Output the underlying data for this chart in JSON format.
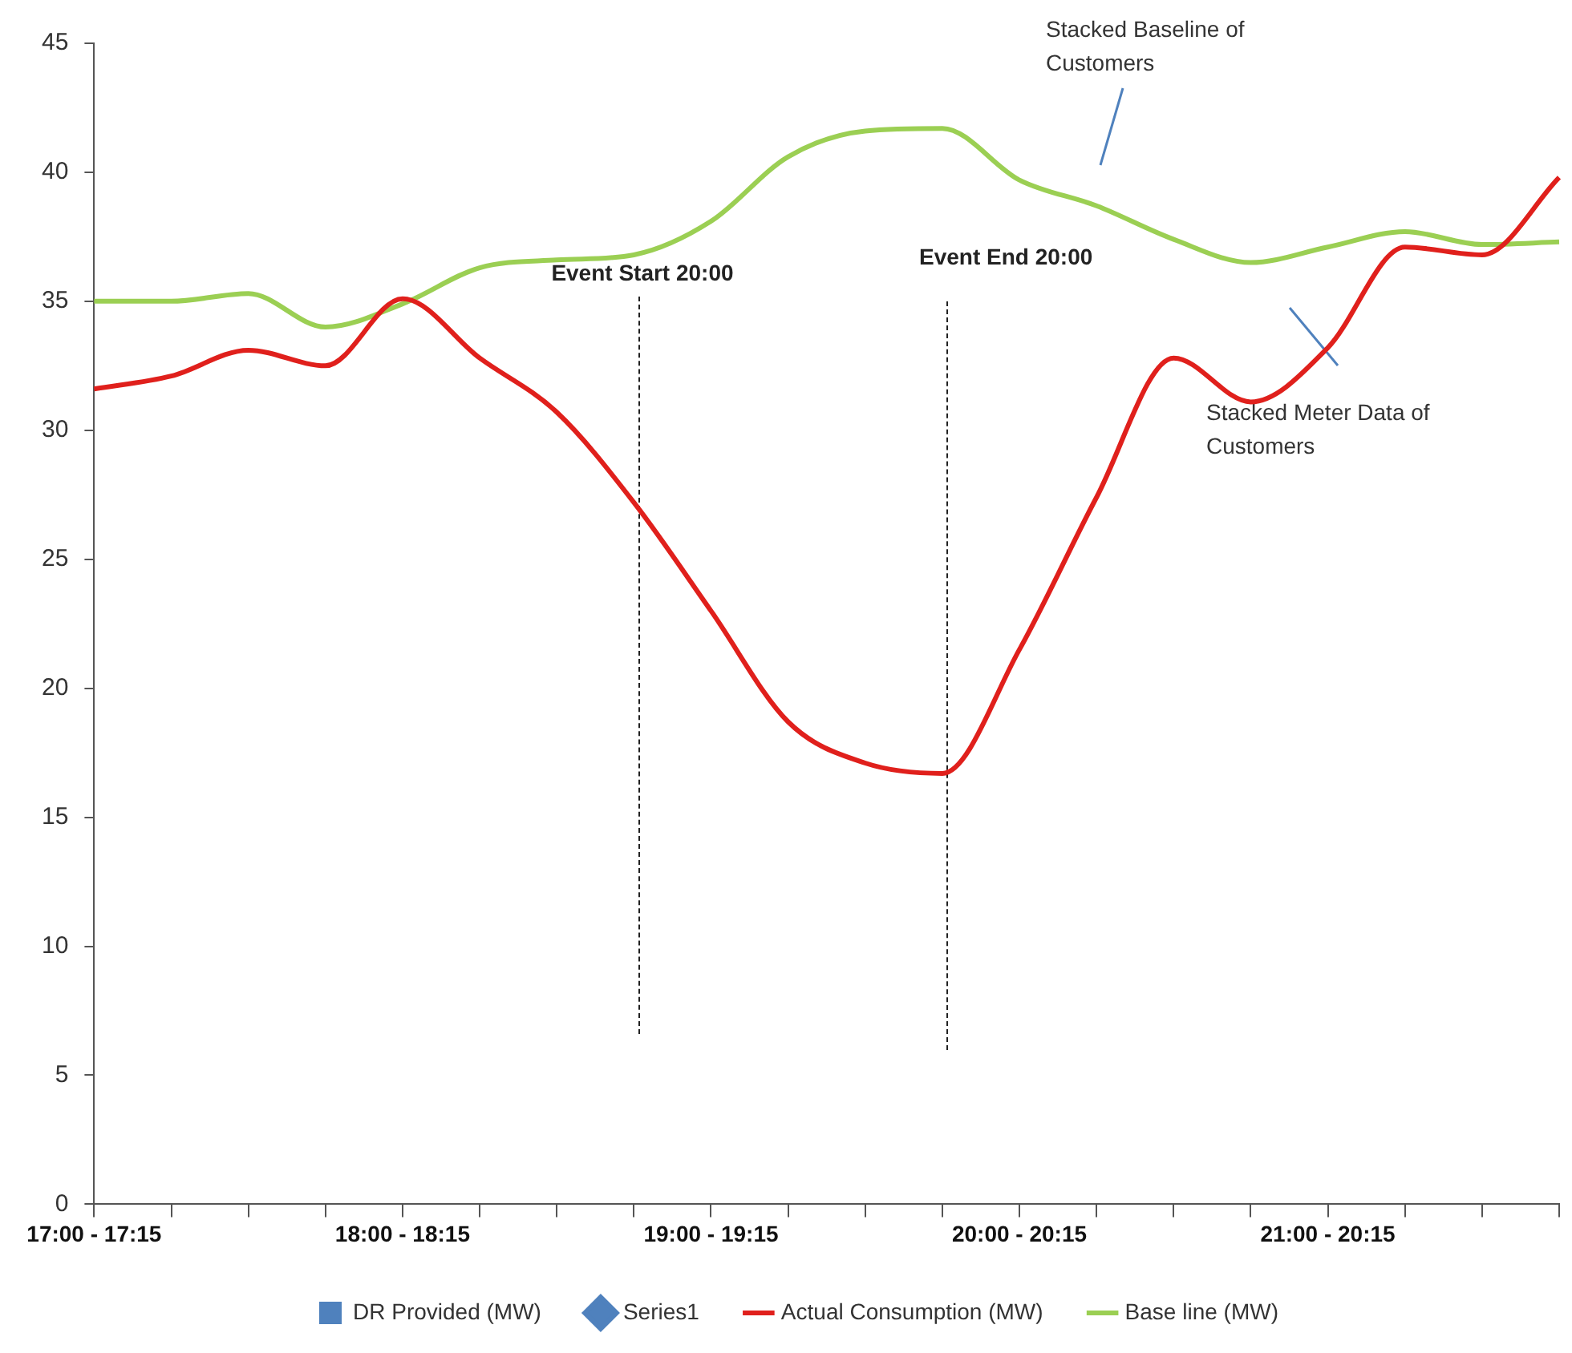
{
  "chart_data": {
    "type": "line",
    "categories": [
      "17:00 - 17:15",
      null,
      null,
      null,
      "18:00 - 18:15",
      null,
      null,
      null,
      "19:00 - 19:15",
      null,
      null,
      null,
      "20:00 - 20:15",
      null,
      null,
      null,
      "21:00 - 20:15",
      null,
      null,
      null
    ],
    "ylim": [
      0,
      45
    ],
    "yticks": [
      0,
      5,
      10,
      15,
      20,
      25,
      30,
      35,
      40,
      45
    ],
    "grid": false,
    "legend": "bottom",
    "marker": "none",
    "line_style": "solid",
    "series": [
      {
        "name": "DR Provided (MW)",
        "type": "bar",
        "color": "#4f81bd",
        "values": [
          null,
          null,
          null,
          null,
          null,
          null,
          null,
          null,
          null,
          null,
          null,
          null,
          null,
          null,
          null,
          null,
          null,
          null,
          null,
          null
        ]
      },
      {
        "name": "Series1",
        "marker": "diamond",
        "color": "#4f81bd",
        "values": [
          null,
          null,
          null,
          null,
          null,
          null,
          null,
          null,
          null,
          null,
          null,
          null,
          null,
          null,
          null,
          null,
          null,
          null,
          null,
          null
        ]
      },
      {
        "name": "Actual Consumption (MW)",
        "color": "#e0201c",
        "values": [
          31.6,
          32.1,
          33.1,
          32.5,
          35.1,
          32.8,
          30.7,
          27.2,
          23.0,
          18.7,
          17.1,
          16.7,
          21.5,
          27.4,
          32.8,
          31.1,
          33.2,
          37.1,
          36.8,
          39.8
        ]
      },
      {
        "name": "Base line (MW)",
        "color": "#9bcf53",
        "values": [
          35.0,
          35.0,
          35.3,
          34.0,
          34.9,
          36.3,
          36.6,
          36.8,
          38.1,
          40.6,
          41.6,
          41.7,
          39.7,
          38.7,
          37.4,
          36.5,
          37.1,
          37.7,
          37.2,
          37.3
        ]
      }
    ],
    "annotations": [
      "Stacked Baseline of Customers",
      "Event Start 20:00",
      "Event End 20:00",
      "Stacked Meter Data of Customers"
    ]
  }
}
